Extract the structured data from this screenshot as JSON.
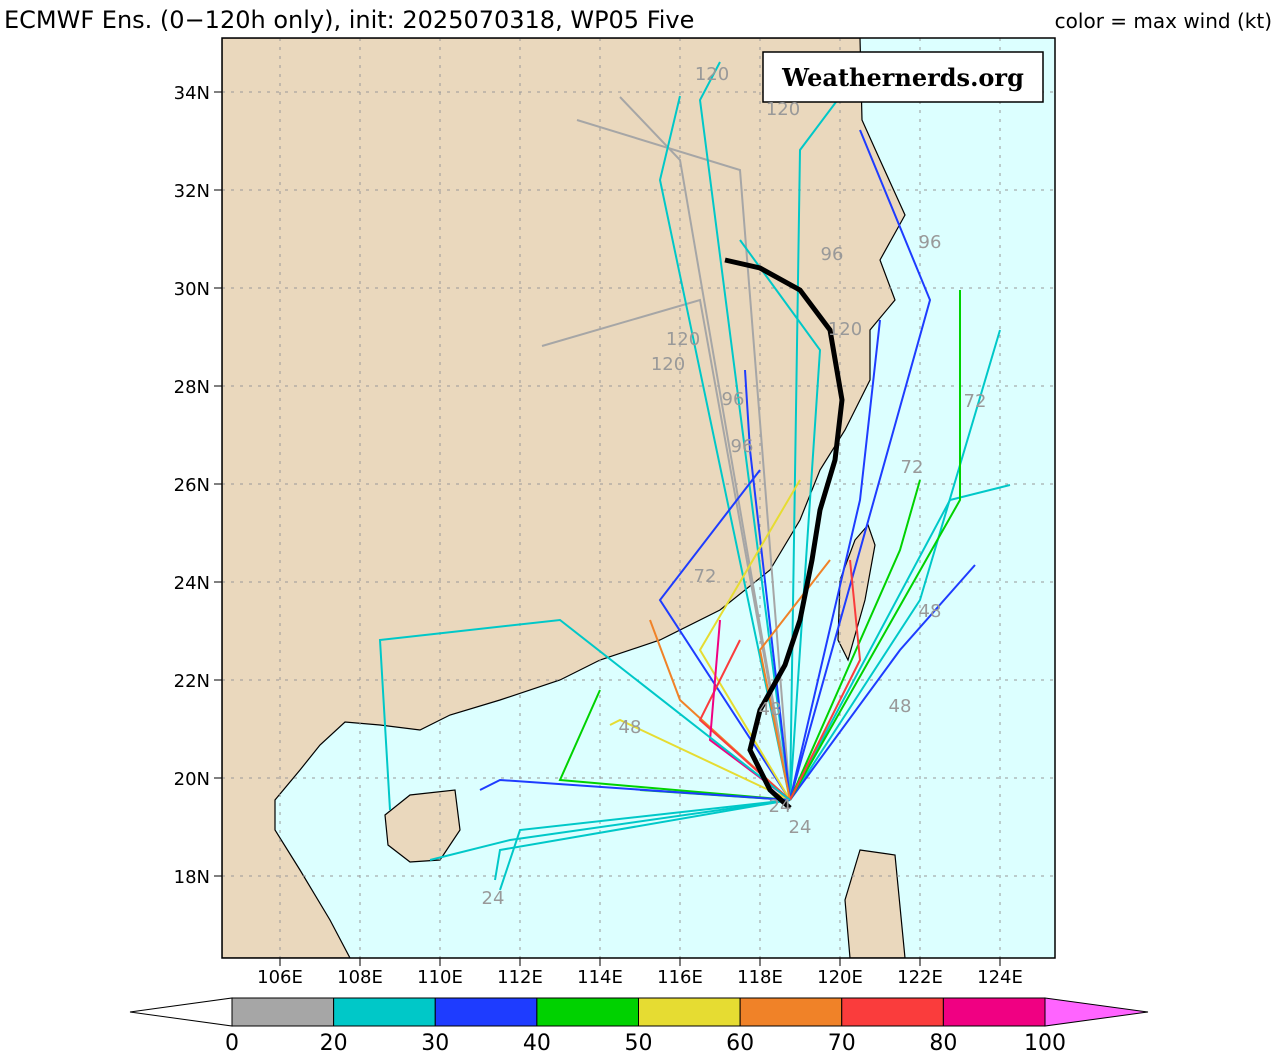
{
  "header": {
    "title": "ECMWF Ens. (0−120h only), init: 2025070318, WP05 Five",
    "legend_note": "color = max wind (kt)"
  },
  "watermark": "Weathernerds.org",
  "map": {
    "lon_labels": [
      "106E",
      "108E",
      "110E",
      "112E",
      "114E",
      "116E",
      "118E",
      "120E",
      "122E",
      "124E"
    ],
    "lat_labels": [
      "34N",
      "32N",
      "30N",
      "28N",
      "26N",
      "24N",
      "22N",
      "20N",
      "18N"
    ],
    "track_labels": [
      "120",
      "120",
      "120",
      "120",
      "120",
      "96",
      "96",
      "96",
      "96",
      "72",
      "72",
      "72",
      "48",
      "48",
      "48",
      "48",
      "24",
      "24",
      "24"
    ]
  },
  "colorbar": {
    "ticks": [
      0,
      20,
      30,
      40,
      50,
      60,
      70,
      80,
      100
    ],
    "colors": [
      "#a6a6a6",
      "#00c8c8",
      "#1e3cff",
      "#00d200",
      "#e6dc32",
      "#f08228",
      "#fa3c3c",
      "#f00082"
    ],
    "under_color": "#ffffff",
    "over_color": "#ff64ff"
  }
}
